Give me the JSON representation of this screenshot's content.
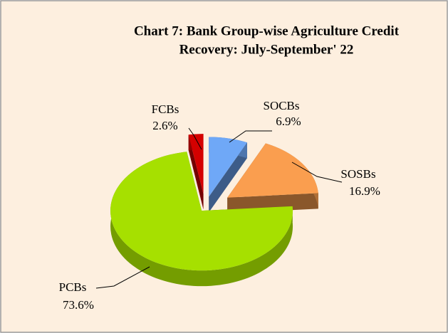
{
  "chart_data": {
    "type": "pie",
    "title": "Chart 7: Bank Group-wise  Agriculture Credit",
    "subtitle": "Recovery: July-September' 22",
    "categories": [
      "SOCBs",
      "SOSBs",
      "PCBs",
      "FCBs"
    ],
    "values": [
      6.9,
      16.9,
      73.6,
      2.6
    ],
    "value_labels": [
      "6.9%",
      "16.9%",
      "73.6%",
      "2.6%"
    ],
    "colors": [
      "#6fa8f7",
      "#fa9e4f",
      "#a6e000",
      "#d40000"
    ]
  }
}
